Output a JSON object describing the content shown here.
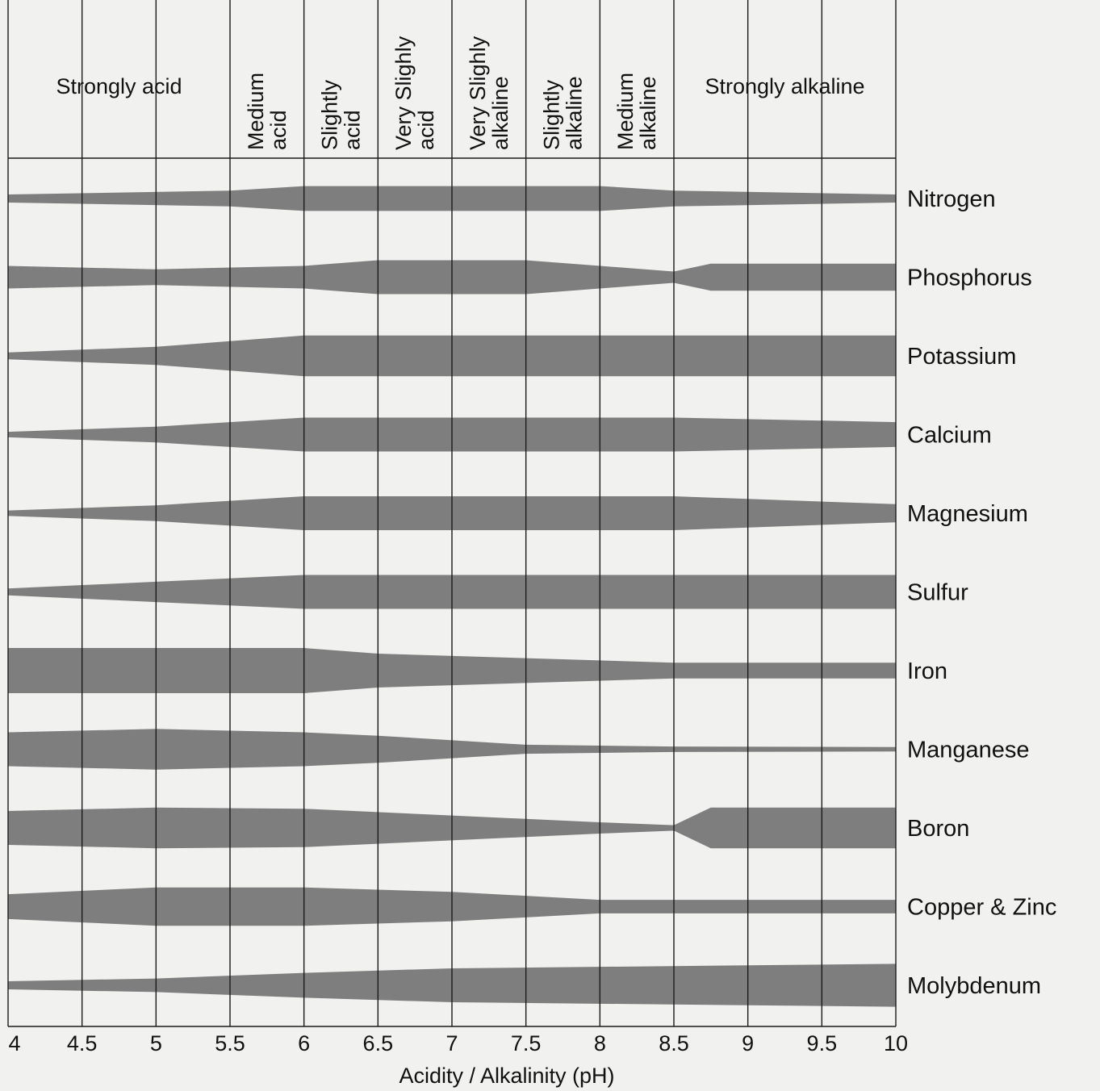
{
  "chart_data": {
    "type": "area",
    "xlabel": "Acidity / Alkalinity (pH)",
    "xlim": [
      4,
      10
    ],
    "x_ticks": [
      "4",
      "4.5",
      "5",
      "5.5",
      "6",
      "6.5",
      "7",
      "7.5",
      "8",
      "8.5",
      "9",
      "9.5",
      "10"
    ],
    "zones": [
      {
        "label": "Strongly acid",
        "from": 4,
        "to": 5.5
      },
      {
        "label": "Medium acid",
        "from": 5.5,
        "to": 6
      },
      {
        "label": "Slightly acid",
        "from": 6,
        "to": 6.5
      },
      {
        "label": "Very Slighly acid",
        "from": 6.5,
        "to": 7
      },
      {
        "label": "Very Slighly alkaline",
        "from": 7,
        "to": 7.5
      },
      {
        "label": "Slightly alkaline",
        "from": 7.5,
        "to": 8
      },
      {
        "label": "Medium alkaline",
        "from": 8,
        "to": 8.5
      },
      {
        "label": "Strongly alkaline",
        "from": 8.5,
        "to": 10
      }
    ],
    "series": [
      {
        "name": "Nitrogen",
        "points": [
          [
            4,
            0.18
          ],
          [
            5.5,
            0.35
          ],
          [
            6.0,
            0.55
          ],
          [
            8.0,
            0.55
          ],
          [
            8.5,
            0.35
          ],
          [
            10,
            0.18
          ]
        ]
      },
      {
        "name": "Phosphorus",
        "points": [
          [
            4,
            0.5
          ],
          [
            5.0,
            0.35
          ],
          [
            6.0,
            0.5
          ],
          [
            6.5,
            0.75
          ],
          [
            7.5,
            0.75
          ],
          [
            8.5,
            0.25
          ],
          [
            8.75,
            0.6
          ],
          [
            10,
            0.6
          ]
        ]
      },
      {
        "name": "Potassium",
        "points": [
          [
            4,
            0.15
          ],
          [
            5.0,
            0.4
          ],
          [
            6.0,
            0.9
          ],
          [
            10,
            0.9
          ]
        ]
      },
      {
        "name": "Calcium",
        "points": [
          [
            4,
            0.12
          ],
          [
            5.0,
            0.35
          ],
          [
            5.5,
            0.55
          ],
          [
            6.0,
            0.75
          ],
          [
            8.5,
            0.75
          ],
          [
            10,
            0.55
          ]
        ]
      },
      {
        "name": "Magnesium",
        "points": [
          [
            4,
            0.12
          ],
          [
            5.0,
            0.35
          ],
          [
            5.5,
            0.55
          ],
          [
            6.0,
            0.75
          ],
          [
            8.5,
            0.75
          ],
          [
            10,
            0.4
          ]
        ]
      },
      {
        "name": "Sulfur",
        "points": [
          [
            4,
            0.15
          ],
          [
            5.0,
            0.45
          ],
          [
            6.0,
            0.75
          ],
          [
            10,
            0.75
          ]
        ]
      },
      {
        "name": "Iron",
        "points": [
          [
            4,
            1.0
          ],
          [
            6.0,
            1.0
          ],
          [
            6.5,
            0.75
          ],
          [
            8.5,
            0.35
          ],
          [
            10,
            0.35
          ]
        ]
      },
      {
        "name": "Manganese",
        "points": [
          [
            4,
            0.75
          ],
          [
            5.0,
            0.9
          ],
          [
            6.0,
            0.75
          ],
          [
            6.5,
            0.6
          ],
          [
            7.5,
            0.2
          ],
          [
            8.5,
            0.12
          ],
          [
            10,
            0.1
          ]
        ]
      },
      {
        "name": "Boron",
        "points": [
          [
            4,
            0.75
          ],
          [
            5.0,
            0.9
          ],
          [
            6.0,
            0.85
          ],
          [
            7.0,
            0.55
          ],
          [
            8.0,
            0.25
          ],
          [
            8.5,
            0.12
          ],
          [
            8.75,
            0.9
          ],
          [
            10,
            0.9
          ]
        ]
      },
      {
        "name": "Copper & Zinc",
        "points": [
          [
            4,
            0.55
          ],
          [
            5.0,
            0.85
          ],
          [
            6.0,
            0.85
          ],
          [
            7.0,
            0.65
          ],
          [
            8.0,
            0.3
          ],
          [
            10,
            0.3
          ]
        ]
      },
      {
        "name": "Molybdenum",
        "points": [
          [
            4,
            0.18
          ],
          [
            5.0,
            0.3
          ],
          [
            6.0,
            0.55
          ],
          [
            7.0,
            0.75
          ],
          [
            10,
            0.95
          ]
        ]
      }
    ]
  }
}
